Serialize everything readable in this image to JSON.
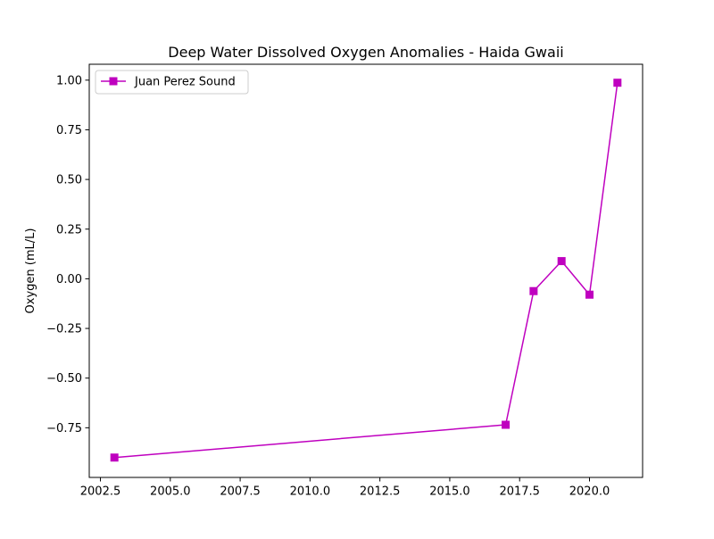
{
  "chart_data": {
    "type": "line",
    "title": "Deep Water Dissolved Oxygen Anomalies - Haida Gwaii",
    "xlabel": "",
    "ylabel": "Oxygen (mL/L)",
    "xlim": [
      2002.1,
      2021.9
    ],
    "ylim": [
      -1.0,
      1.08
    ],
    "xticks": [
      2002.5,
      2005.0,
      2007.5,
      2010.0,
      2012.5,
      2015.0,
      2017.5,
      2020.0
    ],
    "xtick_labels": [
      "2002.5",
      "2005.0",
      "2007.5",
      "2010.0",
      "2012.5",
      "2015.0",
      "2017.5",
      "2020.0"
    ],
    "yticks": [
      -0.75,
      -0.5,
      -0.25,
      0.0,
      0.25,
      0.5,
      0.75,
      1.0
    ],
    "ytick_labels": [
      "−0.75",
      "−0.50",
      "−0.25",
      "0.00",
      "0.25",
      "0.50",
      "0.75",
      "1.00"
    ],
    "grid": false,
    "legend_position": "upper-left",
    "series": [
      {
        "name": "Juan Perez Sound",
        "color": "#bf00bf",
        "marker": "square",
        "x": [
          2003,
          2017,
          2018,
          2019,
          2020,
          2021
        ],
        "y": [
          -0.9,
          -0.735,
          -0.062,
          0.089,
          -0.08,
          0.987
        ]
      }
    ]
  }
}
